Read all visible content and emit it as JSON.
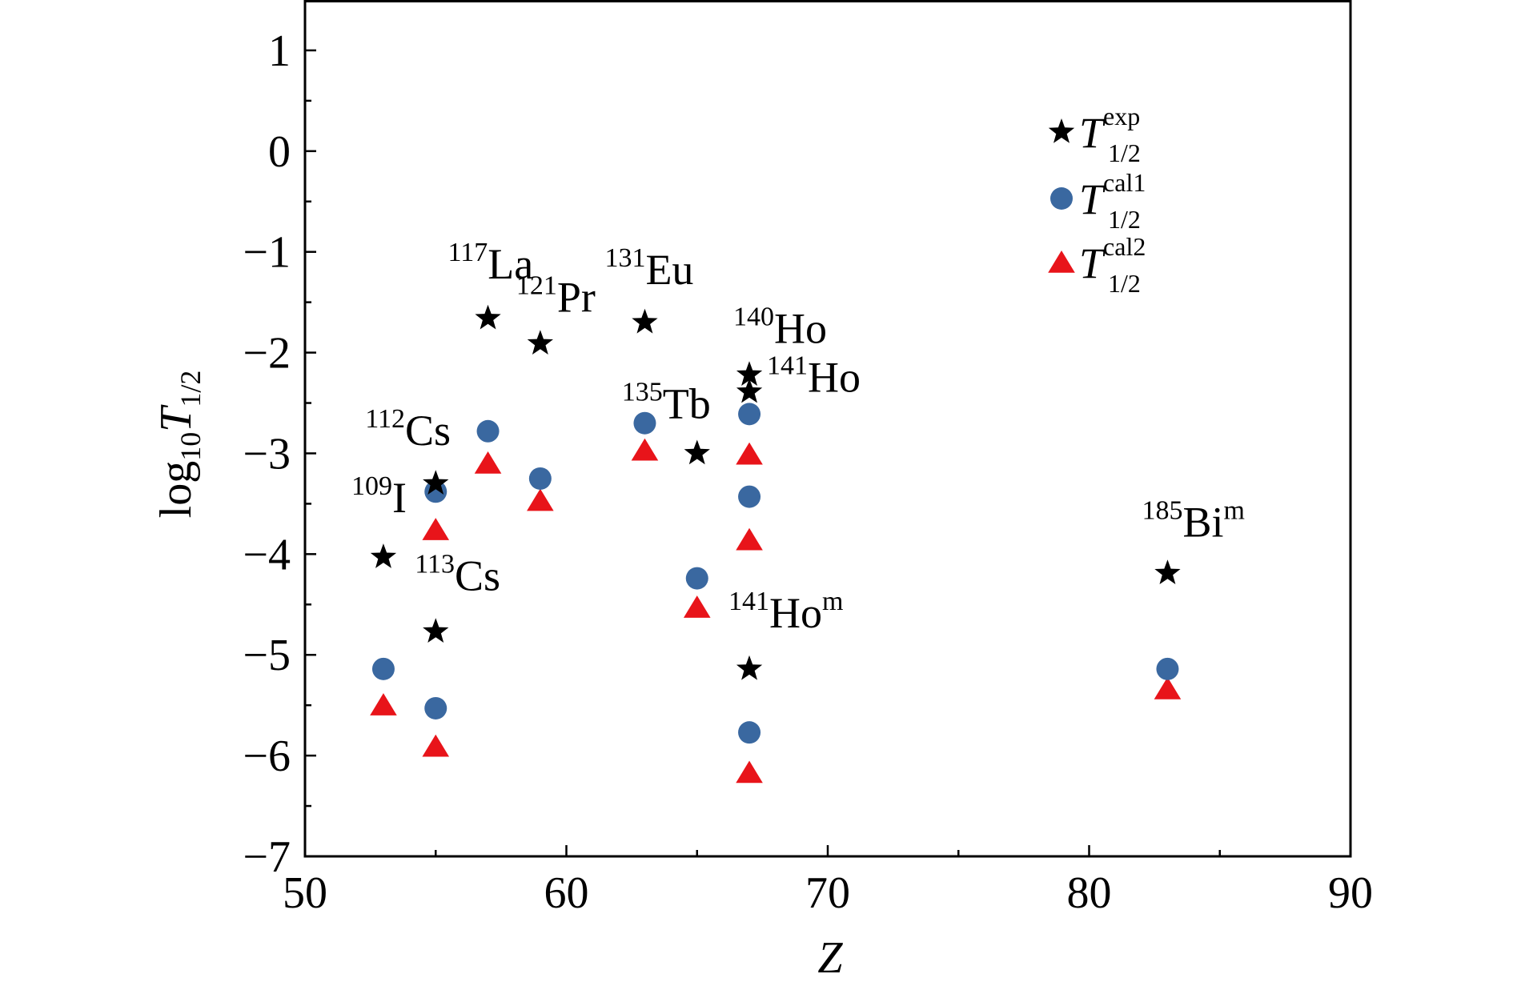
{
  "chart_data": {
    "type": "scatter",
    "xlabel": "Z",
    "ylabel": {
      "base": "log",
      "base_sub": "10",
      "var": "T",
      "var_sub": "1/2"
    },
    "xlim": [
      50,
      90
    ],
    "ylim": [
      -7,
      1.5
    ],
    "x_ticks": [
      "50",
      "60",
      "70",
      "80",
      "90"
    ],
    "x_tick_values": [
      50,
      60,
      70,
      80,
      90
    ],
    "y_ticks": [
      "1",
      "0",
      "−1",
      "−2",
      "−3",
      "−4",
      "−5",
      "−6",
      "−7"
    ],
    "y_tick_values": [
      1,
      0,
      -1,
      -2,
      -3,
      -4,
      -5,
      -6,
      -7
    ],
    "grid": false,
    "legend_position": "top-right",
    "series": [
      {
        "name": {
          "var": "T",
          "sup": "exp",
          "sub": "1/2"
        },
        "marker": "star",
        "color": "#000000",
        "points": [
          {
            "x": 53,
            "y": -4.03
          },
          {
            "x": 55,
            "y": -3.3
          },
          {
            "x": 55,
            "y": -4.77
          },
          {
            "x": 57,
            "y": -1.66
          },
          {
            "x": 59,
            "y": -1.91
          },
          {
            "x": 63,
            "y": -1.7
          },
          {
            "x": 65,
            "y": -3.0
          },
          {
            "x": 67,
            "y": -2.22
          },
          {
            "x": 67,
            "y": -2.39
          },
          {
            "x": 67,
            "y": -5.14
          },
          {
            "x": 83,
            "y": -4.19
          }
        ]
      },
      {
        "name": {
          "var": "T",
          "sup": "cal1",
          "sub": "1/2"
        },
        "marker": "circle",
        "color": "#3a68a0",
        "points": [
          {
            "x": 53,
            "y": -5.14
          },
          {
            "x": 55,
            "y": -3.38
          },
          {
            "x": 55,
            "y": -5.53
          },
          {
            "x": 57,
            "y": -2.78
          },
          {
            "x": 59,
            "y": -3.25
          },
          {
            "x": 63,
            "y": -2.7
          },
          {
            "x": 65,
            "y": -4.24
          },
          {
            "x": 67,
            "y": -2.61
          },
          {
            "x": 67,
            "y": -3.43
          },
          {
            "x": 67,
            "y": -5.77
          },
          {
            "x": 83,
            "y": -5.14
          }
        ]
      },
      {
        "name": {
          "var": "T",
          "sup": "cal2",
          "sub": "1/2"
        },
        "marker": "triangle",
        "color": "#e8141a",
        "points": [
          {
            "x": 53,
            "y": -5.5
          },
          {
            "x": 55,
            "y": -3.76
          },
          {
            "x": 55,
            "y": -5.91
          },
          {
            "x": 57,
            "y": -3.1
          },
          {
            "x": 59,
            "y": -3.47
          },
          {
            "x": 63,
            "y": -2.97
          },
          {
            "x": 65,
            "y": -4.53
          },
          {
            "x": 67,
            "y": -3.01
          },
          {
            "x": 67,
            "y": -3.86
          },
          {
            "x": 67,
            "y": -6.17
          },
          {
            "x": 83,
            "y": -5.34
          }
        ]
      }
    ],
    "annotations": [
      {
        "mass": "117",
        "element": "La",
        "sup2": "",
        "x": 57,
        "y": -1.66
      },
      {
        "mass": "121",
        "element": "Pr",
        "sup2": "",
        "x": 59,
        "y": -1.91
      },
      {
        "mass": "131",
        "element": "Eu",
        "sup2": "",
        "x": 63,
        "y": -1.7
      },
      {
        "mass": "140",
        "element": "Ho",
        "sup2": "",
        "x": 67,
        "y": -2.22
      },
      {
        "mass": "141",
        "element": "Ho",
        "sup2": "",
        "x": 67,
        "y": -2.39
      },
      {
        "mass": "135",
        "element": "Tb",
        "sup2": "",
        "x": 65,
        "y": -3.0
      },
      {
        "mass": "112",
        "element": "Cs",
        "sup2": "",
        "x": 55,
        "y": -3.3
      },
      {
        "mass": "109",
        "element": "I",
        "sup2": "",
        "x": 53,
        "y": -4.03
      },
      {
        "mass": "113",
        "element": "Cs",
        "sup2": "",
        "x": 55,
        "y": -4.77
      },
      {
        "mass": "141",
        "element": "Ho",
        "sup2": "m",
        "x": 67,
        "y": -5.14
      },
      {
        "mass": "185",
        "element": "Bi",
        "sup2": "m",
        "x": 83,
        "y": -4.19
      }
    ]
  }
}
